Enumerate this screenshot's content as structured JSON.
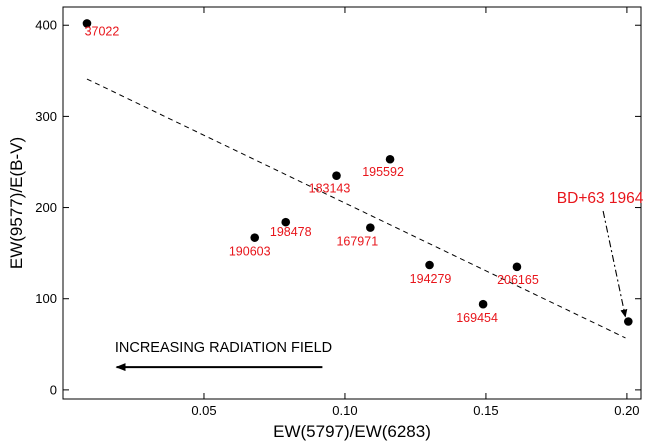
{
  "chart_data": {
    "type": "scatter",
    "xlabel": "EW(5797)/EW(6283)",
    "ylabel": "EW(9577)/E(B-V)",
    "xlim": [
      0.0,
      0.205
    ],
    "ylim": [
      -10,
      420
    ],
    "x_ticks": [
      {
        "value": 0.05,
        "label": "0.05"
      },
      {
        "value": 0.1,
        "label": "0.10"
      },
      {
        "value": 0.15,
        "label": "0.15"
      },
      {
        "value": 0.2,
        "label": "0.20"
      }
    ],
    "y_ticks": [
      {
        "value": 0,
        "label": "0"
      },
      {
        "value": 100,
        "label": "100"
      },
      {
        "value": 200,
        "label": "200"
      },
      {
        "value": 300,
        "label": "300"
      },
      {
        "value": 400,
        "label": "400"
      }
    ],
    "label_color": "#e8151b",
    "points": [
      {
        "label": "37022",
        "x": 0.0085,
        "y": 402
      },
      {
        "label": "190603",
        "x": 0.068,
        "y": 167
      },
      {
        "label": "198478",
        "x": 0.079,
        "y": 184
      },
      {
        "label": "183143",
        "x": 0.097,
        "y": 235
      },
      {
        "label": "167971",
        "x": 0.109,
        "y": 178
      },
      {
        "label": "195592",
        "x": 0.116,
        "y": 253
      },
      {
        "label": "194279",
        "x": 0.13,
        "y": 137
      },
      {
        "label": "169454",
        "x": 0.149,
        "y": 94
      },
      {
        "label": "206165",
        "x": 0.161,
        "y": 135
      },
      {
        "label": "",
        "x": 0.2005,
        "y": 75
      }
    ],
    "fit_line": {
      "style": "dashed",
      "x": [
        0.0085,
        0.1995
      ],
      "y": [
        341,
        57
      ]
    },
    "callout": {
      "text": "BD+63 1964",
      "x": 0.1905,
      "y": 205,
      "target_x": 0.2005,
      "target_y": 75
    },
    "arrow_note": {
      "text": "INCREASING RADIATION FIELD",
      "direction": "left",
      "x_start": 0.092,
      "x_end": 0.019,
      "y": 25
    }
  }
}
